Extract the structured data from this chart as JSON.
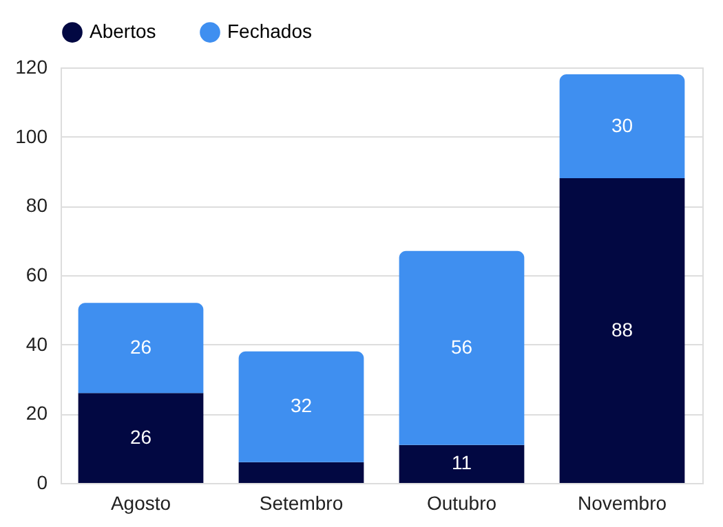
{
  "chart_data": {
    "type": "bar",
    "stacked": true,
    "categories": [
      "Agosto",
      "Setembro",
      "Outubro",
      "Novembro"
    ],
    "series": [
      {
        "name": "Abertos",
        "color": "#020842",
        "values": [
          26,
          6,
          11,
          88
        ],
        "value_labels": [
          "26",
          null,
          "11",
          "88"
        ]
      },
      {
        "name": "Fechados",
        "color": "#3f8ff0",
        "values": [
          26,
          32,
          56,
          30
        ],
        "value_labels": [
          "26",
          "32",
          "56",
          "30"
        ]
      }
    ],
    "ylim": [
      0,
      120
    ],
    "yticks": [
      0,
      20,
      40,
      60,
      80,
      100,
      120
    ],
    "grid": "y",
    "legend": "top"
  }
}
